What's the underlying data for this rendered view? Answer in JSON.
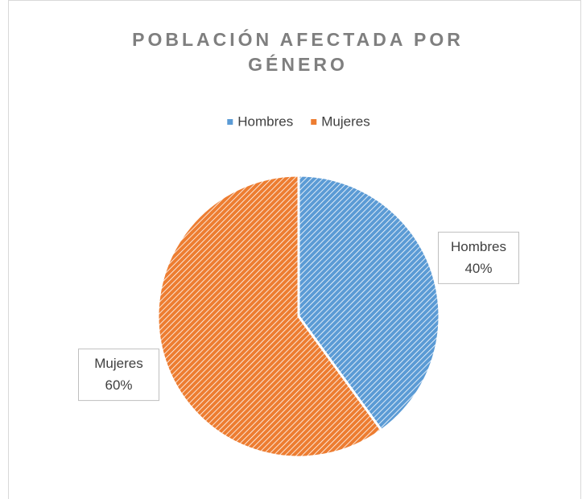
{
  "chart_data": {
    "type": "pie",
    "title": "POBLACIÓN AFECTADA POR GÉNERO",
    "categories": [
      "Hombres",
      "Mujeres"
    ],
    "values": [
      40,
      60
    ],
    "value_labels": [
      "40%",
      "60%"
    ],
    "colors": [
      "#5b9bd5",
      "#ed7d31"
    ],
    "legend": "top"
  }
}
